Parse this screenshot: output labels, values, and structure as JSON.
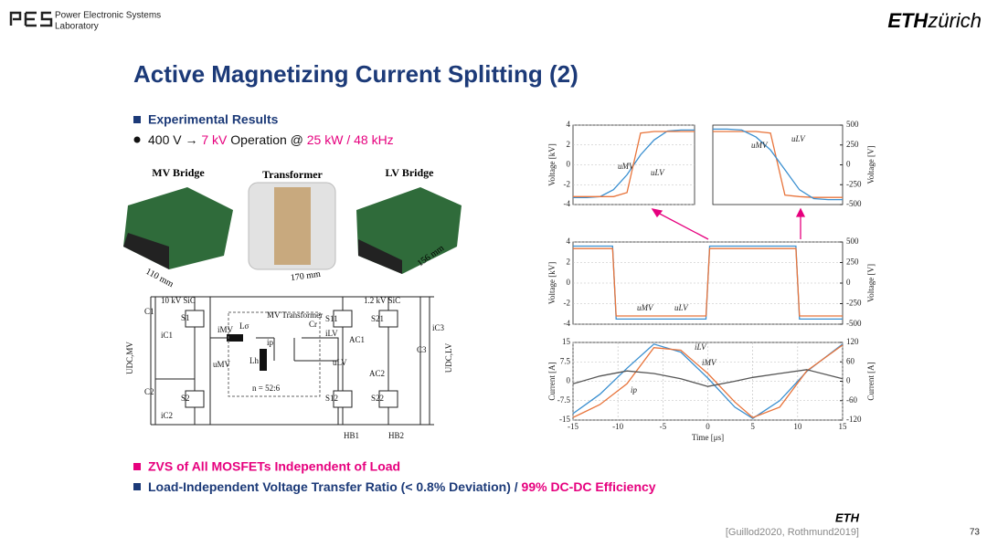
{
  "header": {
    "lab_line1": "Power Electronic Systems",
    "lab_line2": "Laboratory",
    "eth": "ETH",
    "zurich": "zürich"
  },
  "title": "Active Magnetizing Current Splitting (2)",
  "bullets": {
    "heading": "Experimental Results",
    "line": [
      "400 V",
      "→",
      "7 kV",
      "Operation @",
      "25 kW / 48 kHz"
    ]
  },
  "photos": [
    {
      "label": "MV Bridge",
      "dimension": "110 mm"
    },
    {
      "label": "Transformer",
      "dimension": "170 mm"
    },
    {
      "label": "LV Bridge",
      "dimension": "156 mm"
    }
  ],
  "circuit": {
    "labels": [
      "10 kV SiC",
      "1.2 kV SiC",
      "MV Transformer",
      "C1",
      "C2",
      "C3",
      "S1",
      "S2",
      "S11",
      "S12",
      "S21",
      "S22",
      "iC1",
      "iC2",
      "iC3",
      "iMV",
      "uMV",
      "Lσ",
      "Lh",
      "ip",
      "Cr",
      "iLV",
      "uLV",
      "AC1",
      "AC2",
      "n = 52:6",
      "HB1",
      "HB2",
      "UDC,MV",
      "UDC,LV"
    ]
  },
  "chart_data": [
    {
      "type": "line",
      "y_label": "Voltage [kV]",
      "ylim": [
        -4,
        4
      ],
      "yticks": [
        -4,
        -2,
        0,
        2,
        4
      ],
      "y2lim": [
        -500,
        500
      ],
      "series": [
        {
          "name": "uMV",
          "color": "#3a8fd0",
          "values": [
            -3.3,
            -3.3,
            -3.2,
            -2.5,
            -1,
            1,
            2.5,
            3.4,
            3.5,
            3.5
          ]
        },
        {
          "name": "uLV",
          "color": "#e8743b",
          "axis": "y2",
          "values": [
            -400,
            -400,
            -400,
            -400,
            -350,
            400,
            420,
            420,
            420,
            420
          ]
        }
      ]
    },
    {
      "type": "line",
      "y2_label": "Voltage [V]",
      "ylim": [
        -4,
        4
      ],
      "y2lim": [
        -500,
        500
      ],
      "y2ticks": [
        -500,
        -250,
        0,
        250,
        500
      ],
      "series": [
        {
          "name": "uLV",
          "color": "#e8743b",
          "axis": "y2",
          "values": [
            420,
            420,
            420,
            420,
            400,
            -380,
            -400,
            -410,
            -410,
            -410
          ]
        },
        {
          "name": "uMV",
          "color": "#3a8fd0",
          "values": [
            3.6,
            3.6,
            3.5,
            2.8,
            1.5,
            -0.5,
            -2.5,
            -3.4,
            -3.5,
            -3.5
          ]
        }
      ]
    },
    {
      "type": "line",
      "y_label": "Voltage [kV]",
      "y2_label": "Voltage [V]",
      "xlim": [
        -15,
        15
      ],
      "ylim": [
        -4,
        4
      ],
      "yticks": [
        -4,
        -2,
        0,
        2,
        4
      ],
      "y2lim": [
        -500,
        500
      ],
      "y2ticks": [
        -500,
        -250,
        0,
        250,
        500
      ],
      "x": [
        -15,
        -10.6,
        -10.2,
        -0.2,
        0.2,
        9.8,
        10.2,
        15
      ],
      "series": [
        {
          "name": "uMV",
          "color": "#3a8fd0",
          "values": [
            3.6,
            3.6,
            -3.5,
            -3.5,
            3.6,
            3.6,
            -3.5,
            -3.5
          ]
        },
        {
          "name": "uLV",
          "color": "#e8743b",
          "axis": "y2",
          "values": [
            420,
            420,
            -400,
            -400,
            420,
            420,
            -400,
            -400
          ]
        }
      ]
    },
    {
      "type": "line",
      "x_label": "Time [μs]",
      "y_label": "Current [A]",
      "y2_label": "Current [A]",
      "xlim": [
        -15,
        15
      ],
      "xticks": [
        -15,
        -10,
        -5,
        0,
        5,
        10,
        15
      ],
      "ylim": [
        -15,
        15
      ],
      "yticks": [
        -15,
        -7.5,
        0,
        7.5,
        15
      ],
      "y2lim": [
        -120,
        120
      ],
      "y2ticks": [
        -120,
        -60,
        0,
        60,
        120
      ],
      "x": [
        -15,
        -12,
        -9,
        -6,
        -3,
        0,
        3,
        5,
        8,
        11,
        15
      ],
      "series": [
        {
          "name": "iLV",
          "color": "#3a8fd0",
          "axis": "y2",
          "values": [
            -100,
            -40,
            40,
            115,
            90,
            10,
            -80,
            -115,
            -60,
            30,
            115
          ]
        },
        {
          "name": "iMV",
          "color": "#e8743b",
          "values": [
            -14,
            -9,
            -1,
            13,
            12,
            3,
            -8,
            -14,
            -10,
            4,
            14
          ]
        },
        {
          "name": "ip",
          "color": "#555555",
          "values": [
            -1,
            2,
            4,
            3,
            1,
            -2,
            0,
            1.5,
            3,
            4.5,
            1
          ]
        }
      ]
    }
  ],
  "conclusions": {
    "zvs": "ZVS of All MOSFETs Independent of Load",
    "ratio": "Load-Independent Voltage Transfer Ratio (< 0.8% Deviation) /",
    "efficiency": "99% DC-DC Efficiency"
  },
  "footer": {
    "eth": "ETH",
    "reference": "[Guillod2020, Rothmund2019]",
    "page": "73"
  }
}
